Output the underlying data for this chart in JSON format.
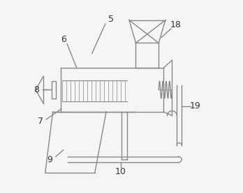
{
  "line_color": "#888888",
  "bg_color": "#f5f5f5",
  "label_color": "#333333",
  "figsize": [
    3.48,
    2.76
  ],
  "dpi": 100
}
